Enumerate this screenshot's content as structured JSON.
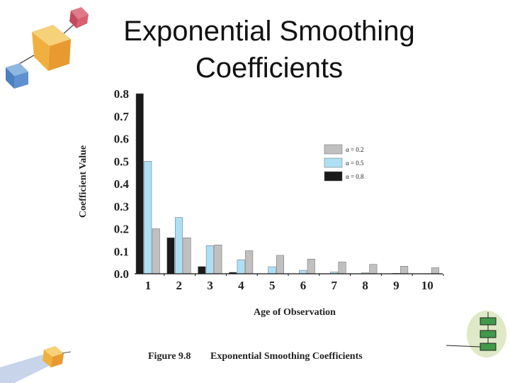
{
  "slide": {
    "title_line1": "Exponential Smoothing",
    "title_line2": "Coefficients"
  },
  "figure": {
    "caption_number": "Figure 9.8",
    "caption_text": "Exponential Smoothing Coefficients"
  },
  "colors": {
    "alpha_02": "#c0c0c0",
    "alpha_05": "#aee0f5",
    "alpha_08": "#1a1a1a"
  },
  "chart_data": {
    "type": "bar",
    "title": "",
    "xlabel": "Age of Observation",
    "ylabel": "Coefficient Value",
    "categories": [
      "1",
      "2",
      "3",
      "4",
      "5",
      "6",
      "7",
      "8",
      "9",
      "10"
    ],
    "yticks": [
      "0.0",
      "0.1",
      "0.2",
      "0.3",
      "0.4",
      "0.5",
      "0.6",
      "0.7",
      "0.8"
    ],
    "ylim": [
      0,
      0.8
    ],
    "grid": false,
    "legend_position": "top-right",
    "series": [
      {
        "name": "α = 0.8",
        "values": [
          0.8,
          0.16,
          0.032,
          0.0064,
          0.0013,
          0.0003,
          0.0001,
          0.0,
          0.0,
          0.0
        ]
      },
      {
        "name": "α = 0.5",
        "values": [
          0.5,
          0.25,
          0.125,
          0.0625,
          0.03125,
          0.0156,
          0.0078,
          0.0039,
          0.002,
          0.001
        ]
      },
      {
        "name": "α = 0.2",
        "values": [
          0.2,
          0.16,
          0.128,
          0.1024,
          0.0819,
          0.0655,
          0.0524,
          0.0419,
          0.0336,
          0.0268
        ]
      }
    ],
    "legend_order": [
      "α = 0.2",
      "α = 0.5",
      "α = 0.8"
    ]
  }
}
